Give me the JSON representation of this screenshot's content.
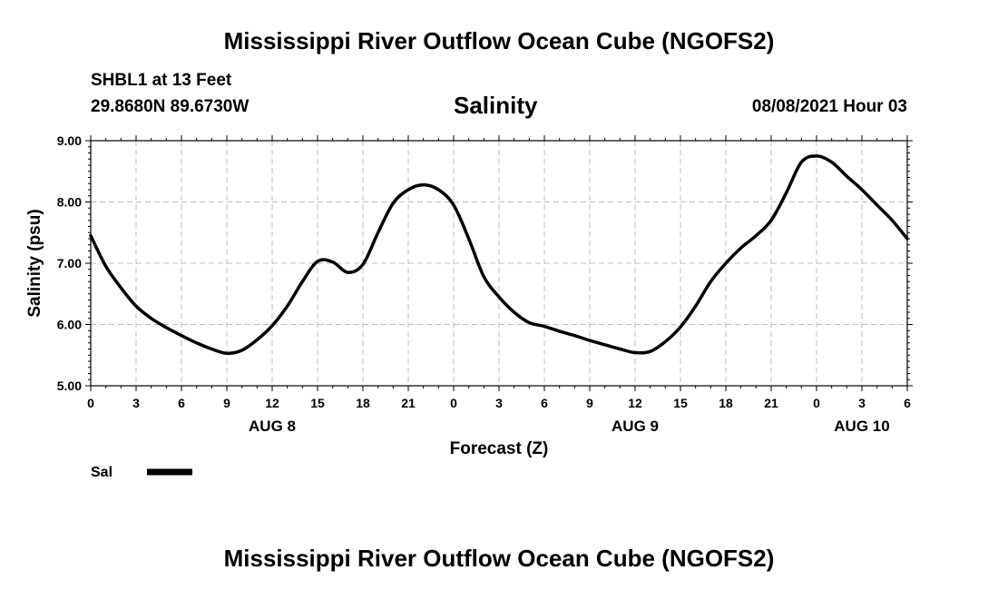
{
  "header": {
    "title": "Mississippi River Outflow Ocean Cube (NGOFS2)",
    "station": "SHBL1 at 13 Feet",
    "coords": "29.8680N  89.6730W",
    "variable": "Salinity",
    "datetime": "08/08/2021 Hour 03"
  },
  "footer": {
    "title": "Mississippi River Outflow Ocean Cube (NGOFS2)"
  },
  "chart_data": {
    "type": "line",
    "title": "Salinity",
    "xlabel": "Forecast (Z)",
    "ylabel": "Salinity (psu)",
    "xlim": [
      0,
      54
    ],
    "ylim": [
      5.0,
      9.0
    ],
    "grid": true,
    "x_ticks": [
      0,
      3,
      6,
      9,
      12,
      15,
      18,
      21,
      24,
      27,
      30,
      33,
      36,
      39,
      42,
      45,
      48,
      51,
      54
    ],
    "x_tick_labels": [
      "0",
      "3",
      "6",
      "9",
      "12",
      "15",
      "18",
      "21",
      "0",
      "3",
      "6",
      "9",
      "12",
      "15",
      "18",
      "21",
      "0",
      "3",
      "6"
    ],
    "y_ticks": [
      5.0,
      6.0,
      7.0,
      8.0,
      9.0
    ],
    "y_tick_labels": [
      "5.00",
      "6.00",
      "7.00",
      "8.00",
      "9.00"
    ],
    "day_labels": [
      {
        "x": 12,
        "label": "AUG 8"
      },
      {
        "x": 36,
        "label": "AUG 9"
      },
      {
        "x": 51,
        "label": "AUG 10"
      }
    ],
    "series": [
      {
        "name": "Sal",
        "color": "#000000",
        "x": [
          0,
          1,
          2,
          3,
          4,
          5,
          6,
          7,
          8,
          9,
          10,
          11,
          12,
          13,
          14,
          15,
          16,
          17,
          18,
          19,
          20,
          21,
          22,
          23,
          24,
          25,
          26,
          27,
          28,
          29,
          30,
          31,
          32,
          33,
          34,
          35,
          36,
          37,
          38,
          39,
          40,
          41,
          42,
          43,
          44,
          45,
          46,
          47,
          48,
          49,
          50,
          51,
          52,
          53,
          54
        ],
        "values": [
          7.45,
          6.95,
          6.6,
          6.3,
          6.1,
          5.95,
          5.82,
          5.7,
          5.6,
          5.53,
          5.58,
          5.75,
          5.98,
          6.3,
          6.7,
          7.03,
          7.02,
          6.85,
          6.98,
          7.5,
          7.98,
          8.2,
          8.28,
          8.2,
          7.95,
          7.4,
          6.78,
          6.45,
          6.2,
          6.03,
          5.97,
          5.89,
          5.82,
          5.74,
          5.67,
          5.6,
          5.54,
          5.56,
          5.72,
          5.96,
          6.3,
          6.7,
          7.0,
          7.25,
          7.45,
          7.7,
          8.15,
          8.65,
          8.75,
          8.65,
          8.42,
          8.2,
          7.95,
          7.7,
          7.4
        ]
      }
    ],
    "legend": {
      "label": "Sal",
      "placement": "bottom-left"
    }
  }
}
